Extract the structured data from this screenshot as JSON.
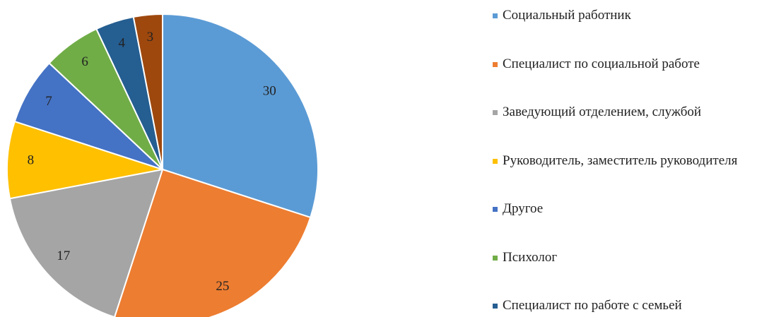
{
  "chart_data": {
    "type": "pie",
    "categories": [
      "Социальный работник",
      "Специалист по социальной работе",
      "Заведующий отделением, службой",
      "Руководитель, заместитель руководителя",
      "Другое",
      "Психолог",
      "Специалист по работе с семьей",
      null
    ],
    "values": [
      30,
      25,
      17,
      8,
      7,
      6,
      4,
      3
    ],
    "colors": [
      "#5b9bd5",
      "#ed7d31",
      "#a5a5a5",
      "#ffc000",
      "#4472c4",
      "#70ad47",
      "#255e91",
      "#9e480e"
    ]
  }
}
